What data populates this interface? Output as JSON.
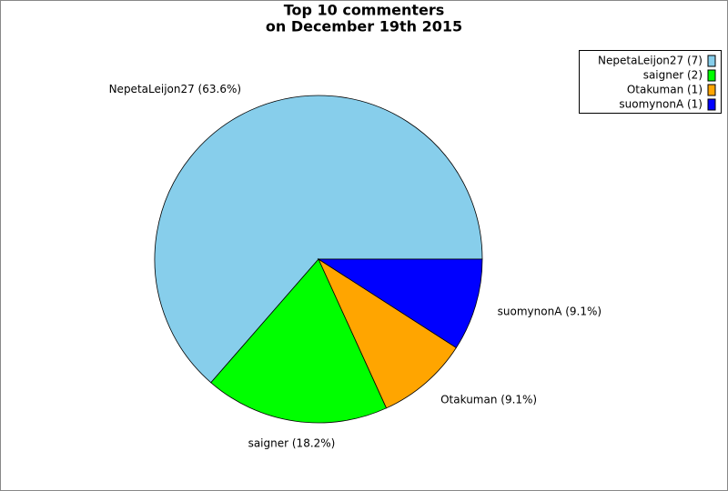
{
  "chart_data": {
    "type": "pie",
    "title": [
      "Top 10 commenters",
      "on December 19th 2015"
    ],
    "values": [
      63.6,
      18.2,
      9.1,
      9.1
    ],
    "value_labels": [
      "NepetaLeijon27 (63.6%)",
      "saigner (18.2%)",
      "Otakuman (9.1%)",
      "suomynonA (9.1%)"
    ],
    "legend_labels": [
      "NepetaLeijon27 (7)",
      "saigner (2)",
      "Otakuman (1)",
      "suomynonA (1)"
    ],
    "colors": [
      "#87ceeb",
      "#00ff00",
      "#ffa500",
      "#0000ff"
    ],
    "legend": "upper right"
  }
}
